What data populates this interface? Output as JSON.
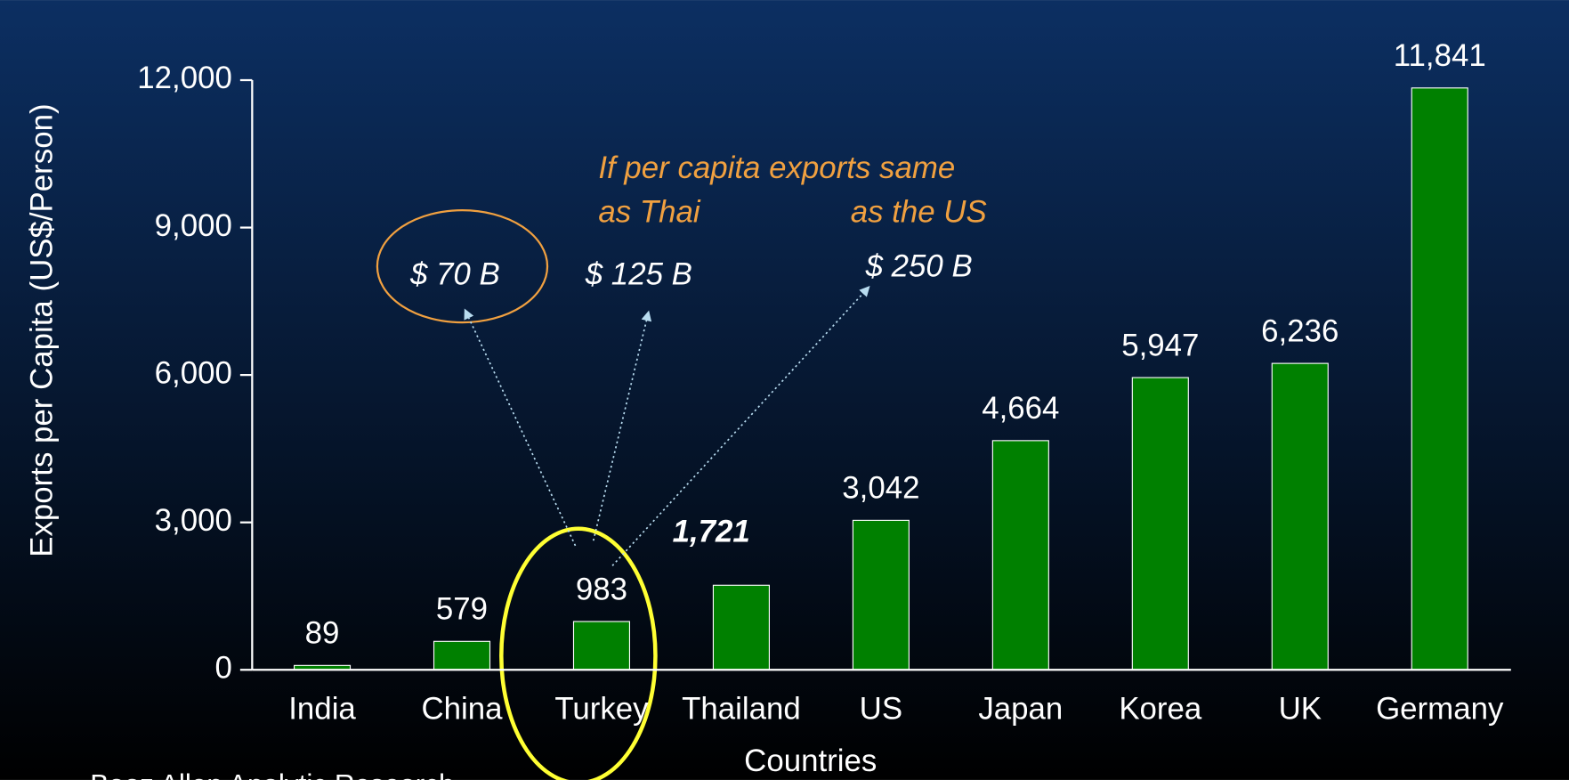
{
  "chart_data": {
    "type": "bar",
    "y_axis_label": "Exports per Capita  (US$/Person)",
    "x_axis_label": "Countries",
    "categories": [
      "India",
      "China",
      "Turkey",
      "Thailand",
      "US",
      "Japan",
      "Korea",
      "UK",
      "Germany"
    ],
    "values": [
      89,
      579,
      983,
      1721,
      3042,
      4664,
      5947,
      6236,
      11841
    ],
    "value_labels": [
      "89",
      "579",
      "983",
      "1,721",
      "3,042",
      "4,664",
      "5,947",
      "6,236",
      "11,841"
    ],
    "color": "#008000",
    "ylim": [
      0,
      12000
    ],
    "yticks": [
      0,
      {
        "value": 3000,
        "label": "3,000"
      },
      {
        "value": 6000,
        "label": "6,000"
      },
      {
        "value": 9000,
        "label": "9,000"
      },
      {
        "value": 12000,
        "label": "12,000"
      }
    ],
    "annotations": [
      "If per capita exports same",
      "as Thai",
      "as the US",
      "$ 70 B",
      "$ 125 B",
      "$ 250 B"
    ],
    "source": "Booz Allen Analytic Research"
  }
}
